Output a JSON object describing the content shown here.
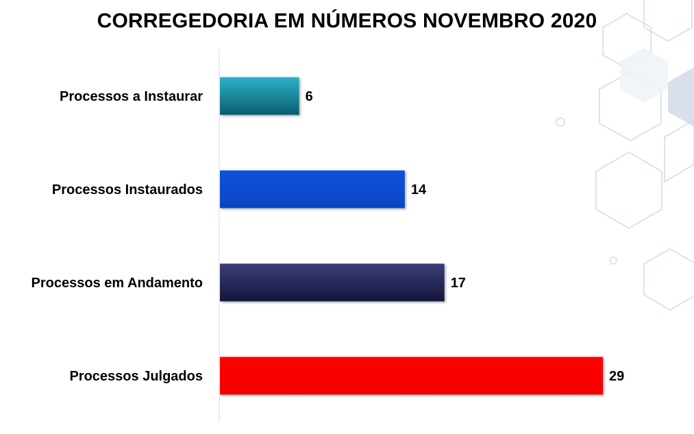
{
  "chart_data": {
    "type": "bar",
    "orientation": "horizontal",
    "title": "CORREGEDORIA EM NÚMEROS NOVEMBRO 2020",
    "categories": [
      "Processos a Instaurar",
      "Processos Instaurados",
      "Processos em Andamento",
      "Processos Julgados"
    ],
    "values": [
      6,
      14,
      17,
      29
    ],
    "colors": [
      "#1a8fa6",
      "#0a4fd6",
      "#2a2d5e",
      "#ff0000"
    ],
    "xlim": [
      0,
      29
    ],
    "grid": false,
    "legend": "none"
  }
}
